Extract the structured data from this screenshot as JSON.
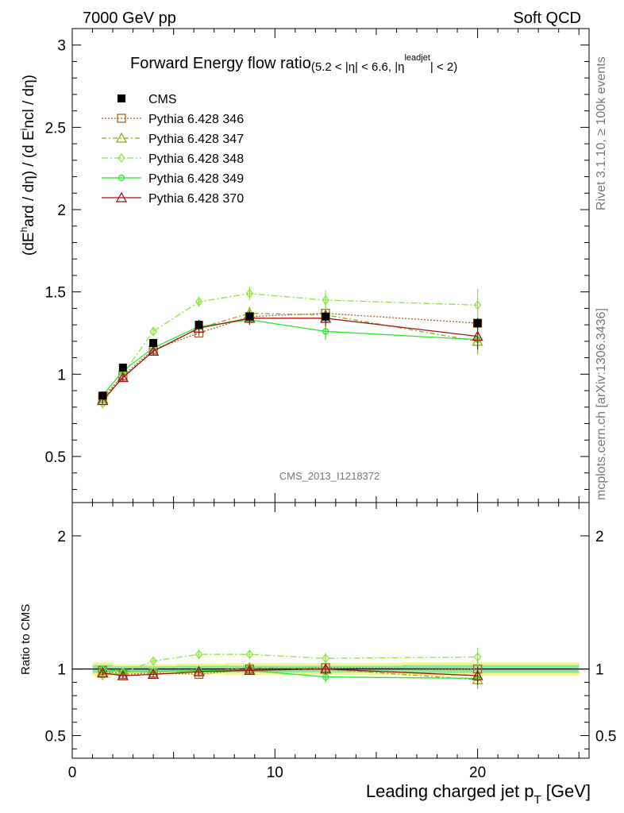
{
  "header": {
    "left": "7000 GeV pp",
    "right": "Soft QCD"
  },
  "side": {
    "rivet": "Rivet 3.1.10, ≥ 100k events",
    "mcplots": "mcplots.cern.ch [arXiv:1306.3436]"
  },
  "chart_data": [
    {
      "type": "line",
      "title_main": "Forward Energy flow ratio",
      "title_cond_a": "(5.2 < |η| < 6.6, |η",
      "title_cond_sup": "leadjet",
      "title_cond_b": "| < 2)",
      "ylabel_a": "(dE",
      "ylabel_sup": "h",
      "ylabel_b": "ard / dη) / (d E",
      "ylabel_sup2": "i",
      "ylabel_c": "ncl / dη)",
      "watermark": "CMS_2013_I1218372",
      "xlim": [
        0,
        25.5
      ],
      "ylim": [
        0.22,
        3.1
      ],
      "yticks": [
        0.5,
        1,
        1.5,
        2,
        2.5,
        3
      ],
      "ytick_labels": [
        "0.5",
        "1",
        "1.5",
        "2",
        "2.5",
        "3"
      ],
      "x": [
        1.5,
        2.5,
        4,
        6.25,
        8.75,
        12.5,
        20
      ],
      "cms": {
        "name": "CMS",
        "y": [
          0.87,
          1.04,
          1.19,
          1.3,
          1.35,
          1.35,
          1.31
        ],
        "err": [
          0.02,
          0.02,
          0.02,
          0.03,
          0.03,
          0.03,
          0.03
        ]
      },
      "series": [
        {
          "name": "Pythia 6.428 346",
          "color": "#a0642c",
          "dash": "2,2",
          "marker": "square",
          "y": [
            0.86,
            0.99,
            1.15,
            1.25,
            1.35,
            1.37,
            1.31
          ],
          "err": [
            0.02,
            0.02,
            0.02,
            0.02,
            0.03,
            0.04,
            0.06
          ]
        },
        {
          "name": "Pythia 6.428 347",
          "color": "#94a614",
          "dash": "6,3,2,3",
          "marker": "triangle",
          "y": [
            0.85,
            0.98,
            1.14,
            1.28,
            1.37,
            1.36,
            1.2
          ],
          "err": [
            0.02,
            0.02,
            0.02,
            0.03,
            0.04,
            0.05,
            0.08
          ]
        },
        {
          "name": "Pythia 6.428 348",
          "color": "#8ce63c",
          "dash": "8,3,2,3",
          "marker": "diamond",
          "y": [
            0.82,
            1.0,
            1.26,
            1.44,
            1.49,
            1.45,
            1.42
          ],
          "err": [
            0.02,
            0.02,
            0.02,
            0.03,
            0.04,
            0.06,
            0.1
          ]
        },
        {
          "name": "Pythia 6.428 349",
          "color": "#28e628",
          "dash": "",
          "marker": "circle",
          "y": [
            0.87,
            1.02,
            1.16,
            1.29,
            1.33,
            1.26,
            1.21
          ],
          "err": [
            0.02,
            0.02,
            0.02,
            0.02,
            0.03,
            0.05,
            0.08
          ]
        },
        {
          "name": "Pythia 6.428 370",
          "color": "#a01414",
          "dash": "",
          "marker": "triangle",
          "y": [
            0.84,
            0.98,
            1.14,
            1.28,
            1.34,
            1.34,
            1.23
          ],
          "err": [
            0.02,
            0.02,
            0.02,
            0.03,
            0.04,
            0.05,
            0.08
          ]
        }
      ]
    },
    {
      "type": "line",
      "ylabel": "Ratio to CMS",
      "xlabel_a": "Leading charged jet p",
      "xlabel_sub": "T",
      "xlabel_b": " [GeV]",
      "xlim": [
        0,
        25.5
      ],
      "ylim": [
        0.33,
        2.25
      ],
      "yticks": [
        0.5,
        1,
        2
      ],
      "ytick_labels": [
        "0.5",
        "1",
        "2"
      ],
      "xticks": [
        0,
        10,
        20
      ],
      "xtick_labels": [
        "0",
        "10",
        "20"
      ],
      "x": [
        1.5,
        2.5,
        4,
        6.25,
        8.75,
        12.5,
        20
      ],
      "band_inner": [
        0.03,
        0.02,
        0.02,
        0.025,
        0.025,
        0.025,
        0.03
      ],
      "band_outer": [
        0.05,
        0.035,
        0.035,
        0.04,
        0.045,
        0.045,
        0.05
      ],
      "series": [
        {
          "name": "Pythia 6.428 346",
          "y": [
            0.99,
            0.96,
            0.97,
            0.96,
            1.0,
            1.01,
            1.0
          ]
        },
        {
          "name": "Pythia 6.428 347",
          "y": [
            0.98,
            0.95,
            0.96,
            0.98,
            1.01,
            1.0,
            0.92
          ]
        },
        {
          "name": "Pythia 6.428 348",
          "y": [
            0.95,
            0.97,
            1.06,
            1.11,
            1.11,
            1.08,
            1.09
          ]
        },
        {
          "name": "Pythia 6.428 349",
          "y": [
            1.0,
            0.98,
            0.98,
            0.99,
            0.99,
            0.94,
            0.93
          ]
        },
        {
          "name": "Pythia 6.428 370",
          "y": [
            0.97,
            0.95,
            0.96,
            0.98,
            0.99,
            1.0,
            0.95
          ]
        }
      ],
      "err": [
        0.02,
        0.02,
        0.02,
        0.02,
        0.03,
        0.04,
        0.07
      ]
    }
  ]
}
